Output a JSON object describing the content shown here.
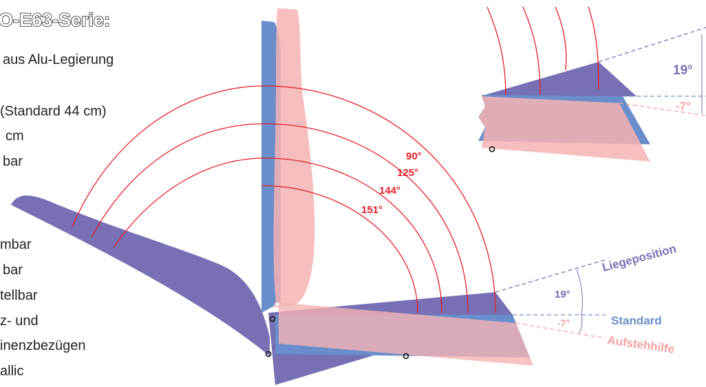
{
  "title": "O-E63-Serie:",
  "features": [
    "aus Alu-Legierung",
    "(Standard 44 cm)",
    "cm",
    "bar",
    "mbar",
    "bar",
    "tellbar",
    "z- und",
    "inenzbezügen",
    "allic"
  ],
  "angles": [
    "90°",
    "125°",
    "144°",
    "151°"
  ],
  "inset": {
    "up": "19°",
    "down": "-7°"
  },
  "seat": {
    "up": "19°",
    "down": "-7°",
    "positions": [
      "Liegeposition",
      "Standard",
      "Aufstehhilfe"
    ]
  }
}
